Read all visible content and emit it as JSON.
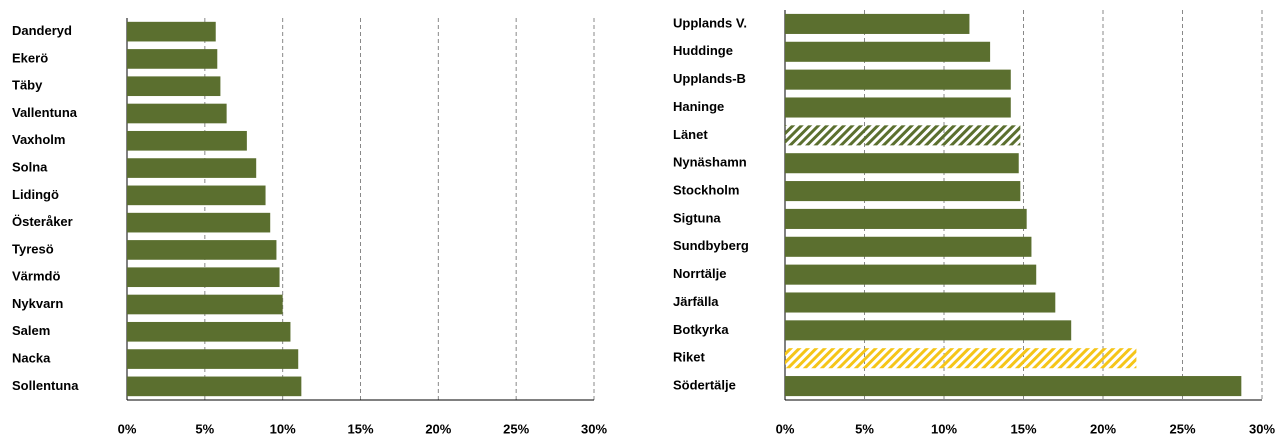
{
  "chart_data": [
    {
      "type": "barh",
      "categories": [
        "Danderyd",
        "Ekerö",
        "Täby",
        "Vallentuna",
        "Vaxholm",
        "Solna",
        "Lidingö",
        "Österåker",
        "Tyresö",
        "Värmdö",
        "Nykvarn",
        "Salem",
        "Nacka",
        "Sollentuna"
      ],
      "values": [
        5.7,
        5.8,
        6.0,
        6.4,
        7.7,
        8.3,
        8.9,
        9.2,
        9.6,
        9.8,
        10.0,
        10.5,
        11.0,
        11.2
      ],
      "colors": [
        "#5b6f2f",
        "#5b6f2f",
        "#5b6f2f",
        "#5b6f2f",
        "#5b6f2f",
        "#5b6f2f",
        "#5b6f2f",
        "#5b6f2f",
        "#5b6f2f",
        "#5b6f2f",
        "#5b6f2f",
        "#5b6f2f",
        "#5b6f2f",
        "#5b6f2f"
      ],
      "hatch": [
        false,
        false,
        false,
        false,
        false,
        false,
        false,
        false,
        false,
        false,
        false,
        false,
        false,
        false
      ],
      "xlim": [
        0,
        30
      ],
      "xticks": [
        {
          "value": 0,
          "label": "0%"
        },
        {
          "value": 5,
          "label": "5%"
        },
        {
          "value": 10,
          "label": "10%"
        },
        {
          "value": 15,
          "label": "15%"
        },
        {
          "value": 20,
          "label": "20%"
        },
        {
          "value": 25,
          "label": "25%"
        },
        {
          "value": 30,
          "label": "30%"
        }
      ],
      "grid": true
    },
    {
      "type": "barh",
      "categories": [
        "Upplands V.",
        "Huddinge",
        "Upplands-B",
        "Haninge",
        "Länet",
        "Nynäshamn",
        "Stockholm",
        "Sigtuna",
        "Sundbyberg",
        "Norrtälje",
        "Järfälla",
        "Botkyrka",
        "Riket",
        "Södertälje"
      ],
      "values": [
        11.6,
        12.9,
        14.2,
        14.2,
        14.8,
        14.7,
        14.8,
        15.2,
        15.5,
        15.8,
        17.0,
        18.0,
        22.1,
        28.7
      ],
      "colors": [
        "#5b6f2f",
        "#5b6f2f",
        "#5b6f2f",
        "#5b6f2f",
        "#5b6f2f",
        "#5b6f2f",
        "#5b6f2f",
        "#5b6f2f",
        "#5b6f2f",
        "#5b6f2f",
        "#5b6f2f",
        "#5b6f2f",
        "#f5c518",
        "#5b6f2f"
      ],
      "hatch": [
        false,
        false,
        false,
        false,
        true,
        false,
        false,
        false,
        false,
        false,
        false,
        false,
        true,
        false
      ],
      "xlim": [
        0,
        30
      ],
      "xticks": [
        {
          "value": 0,
          "label": "0%"
        },
        {
          "value": 5,
          "label": "5%"
        },
        {
          "value": 10,
          "label": "10%"
        },
        {
          "value": 15,
          "label": "15%"
        },
        {
          "value": 20,
          "label": "20%"
        },
        {
          "value": 25,
          "label": "25%"
        },
        {
          "value": 30,
          "label": "30%"
        }
      ],
      "grid": true
    }
  ]
}
